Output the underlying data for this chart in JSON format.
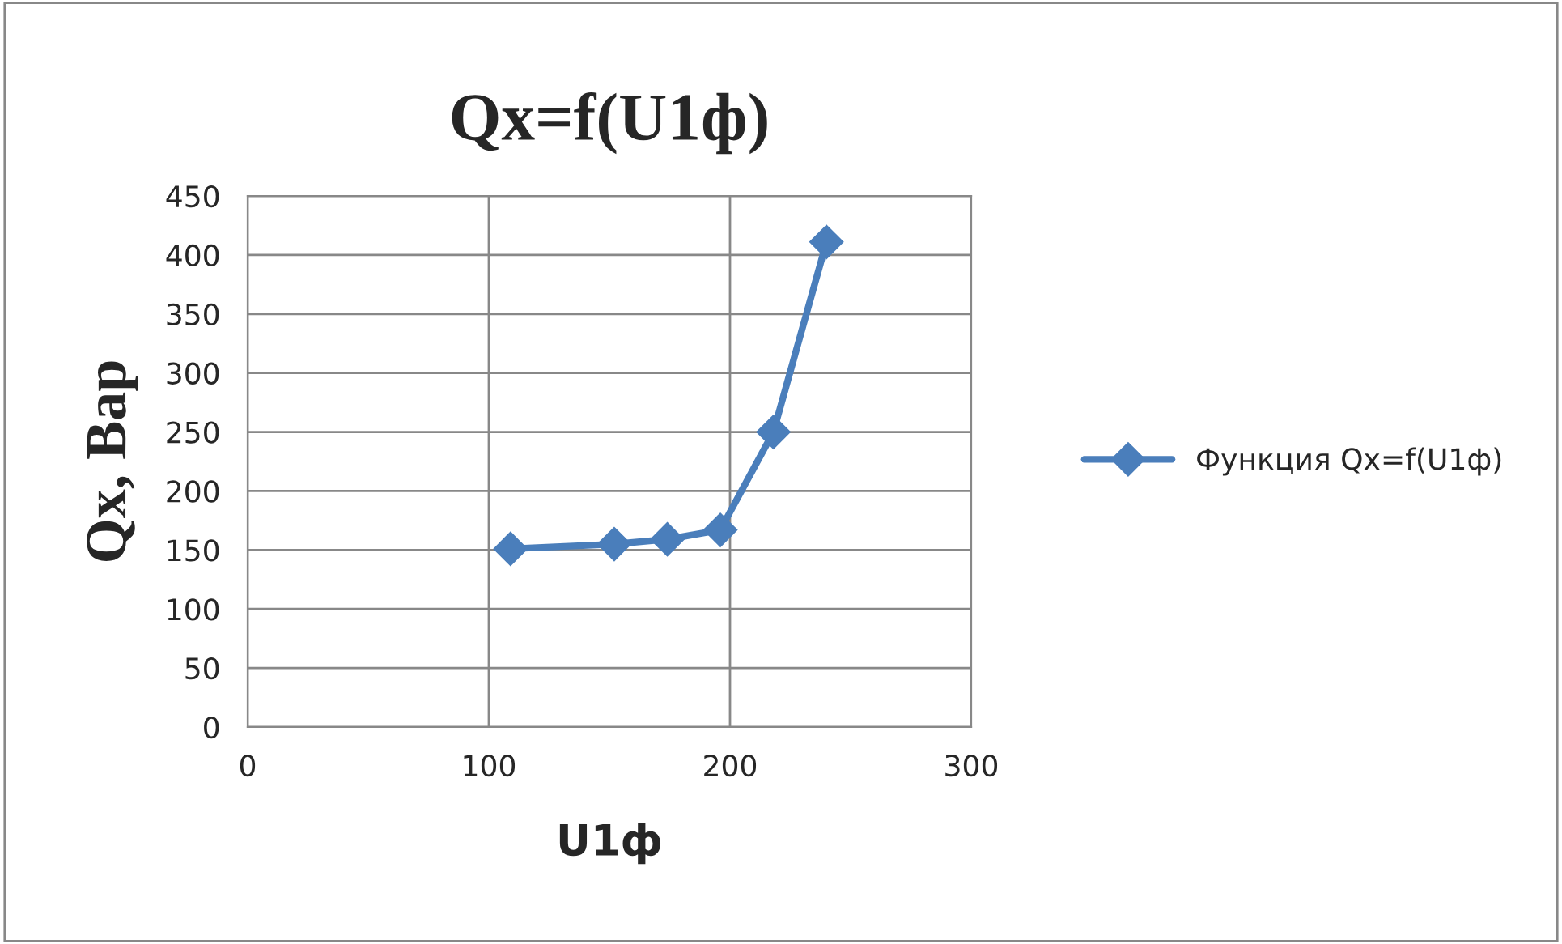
{
  "chart_data": {
    "type": "line",
    "title": "Qx=f(U1ф)",
    "xlabel": "U1ф",
    "ylabel": "Qx, Вар",
    "series": [
      {
        "name": "Функция Qx=f(U1ф)",
        "color": "#4a7ebb",
        "x": [
          109,
          152,
          174,
          196,
          218,
          240
        ],
        "values": [
          151,
          155,
          159,
          167,
          250,
          411
        ]
      }
    ],
    "xlim": [
      0,
      300
    ],
    "xticks": [
      0,
      100,
      200,
      300
    ],
    "ylim": [
      0,
      450
    ],
    "yticks": [
      0,
      50,
      100,
      150,
      200,
      250,
      300,
      350,
      400,
      450
    ],
    "grid": true,
    "legend": "right",
    "marker": "diamond",
    "line_style": "solid"
  }
}
